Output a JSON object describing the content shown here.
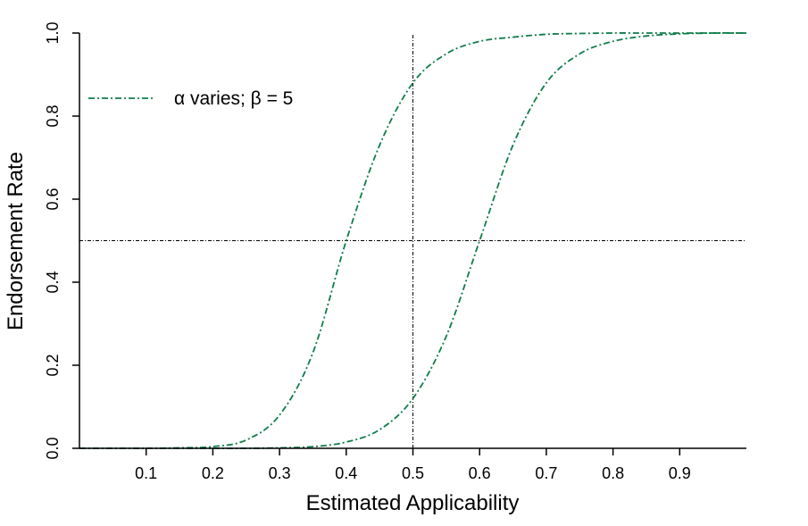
{
  "chart_data": {
    "type": "line",
    "xlabel": "Estimated Applicability",
    "ylabel": "Endorsement Rate",
    "xlim": [
      0,
      1
    ],
    "ylim": [
      0,
      1
    ],
    "x_ticks": [
      "0.1",
      "0.2",
      "0.3",
      "0.4",
      "0.5",
      "0.6",
      "0.7",
      "0.8",
      "0.9"
    ],
    "y_ticks": [
      "0.0",
      "0.2",
      "0.4",
      "0.6",
      "0.8",
      "1.0"
    ],
    "legend": {
      "label": "α varies; β = 5",
      "placement": "top-left"
    },
    "reference_lines": {
      "vertical_x": 0.5,
      "horizontal_y": 0.5
    },
    "series": [
      {
        "x": [
          0.0,
          0.05,
          0.1,
          0.15,
          0.2,
          0.25,
          0.3,
          0.35,
          0.4,
          0.45,
          0.5,
          0.55,
          0.6,
          0.65,
          0.7,
          0.75,
          0.8,
          0.85,
          0.9,
          0.95,
          1.0
        ],
        "y": [
          0.0,
          0.0,
          0.0,
          0.001,
          0.004,
          0.02,
          0.08,
          0.23,
          0.5,
          0.73,
          0.88,
          0.95,
          0.98,
          0.99,
          0.997,
          0.999,
          1.0,
          1.0,
          1.0,
          1.0,
          1.0
        ]
      },
      {
        "x": [
          0.0,
          0.05,
          0.1,
          0.15,
          0.2,
          0.25,
          0.3,
          0.35,
          0.4,
          0.45,
          0.5,
          0.55,
          0.6,
          0.65,
          0.7,
          0.75,
          0.8,
          0.85,
          0.9,
          0.95,
          1.0
        ],
        "y": [
          0.0,
          0.0,
          0.0,
          0.0,
          0.0,
          0.0,
          0.001,
          0.004,
          0.015,
          0.045,
          0.12,
          0.27,
          0.5,
          0.73,
          0.88,
          0.95,
          0.98,
          0.993,
          0.998,
          1.0,
          1.0
        ]
      }
    ]
  },
  "colors": {
    "curve": "#0f7d4a",
    "reference": "#000000",
    "axis": "#000000"
  }
}
